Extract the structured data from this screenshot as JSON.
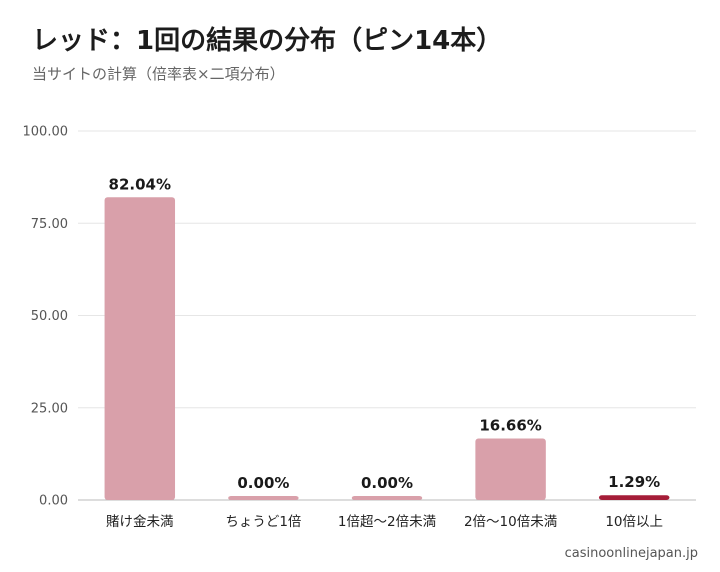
{
  "title": "レッド：1回の結果の分布（ピン14本）",
  "subtitle": "当サイトの計算（倍率表×二項分布）",
  "source": "casinoonlinejapan.jp",
  "colors": {
    "bar": "#d9a0aa",
    "bar_highlight": "#a51d38",
    "grid": "#e6e6e6",
    "axis": "#bbbbbb"
  },
  "chart_data": {
    "type": "bar",
    "categories": [
      "賭け金未満",
      "ちょうど1倍",
      "1倍超〜2倍未満",
      "2倍〜10倍未満",
      "10倍以上"
    ],
    "values": [
      82.04,
      0.0,
      0.0,
      16.66,
      1.29
    ],
    "data_labels": [
      "82.04%",
      "0.00%",
      "0.00%",
      "16.66%",
      "1.29%"
    ],
    "highlight_index": 4,
    "ylim": [
      0,
      100
    ],
    "yticks": [
      0,
      25,
      50,
      75,
      100
    ],
    "ytick_labels": [
      "0.00",
      "25.00",
      "50.00",
      "75.00",
      "100.00"
    ],
    "grid": true,
    "legend": "none"
  }
}
